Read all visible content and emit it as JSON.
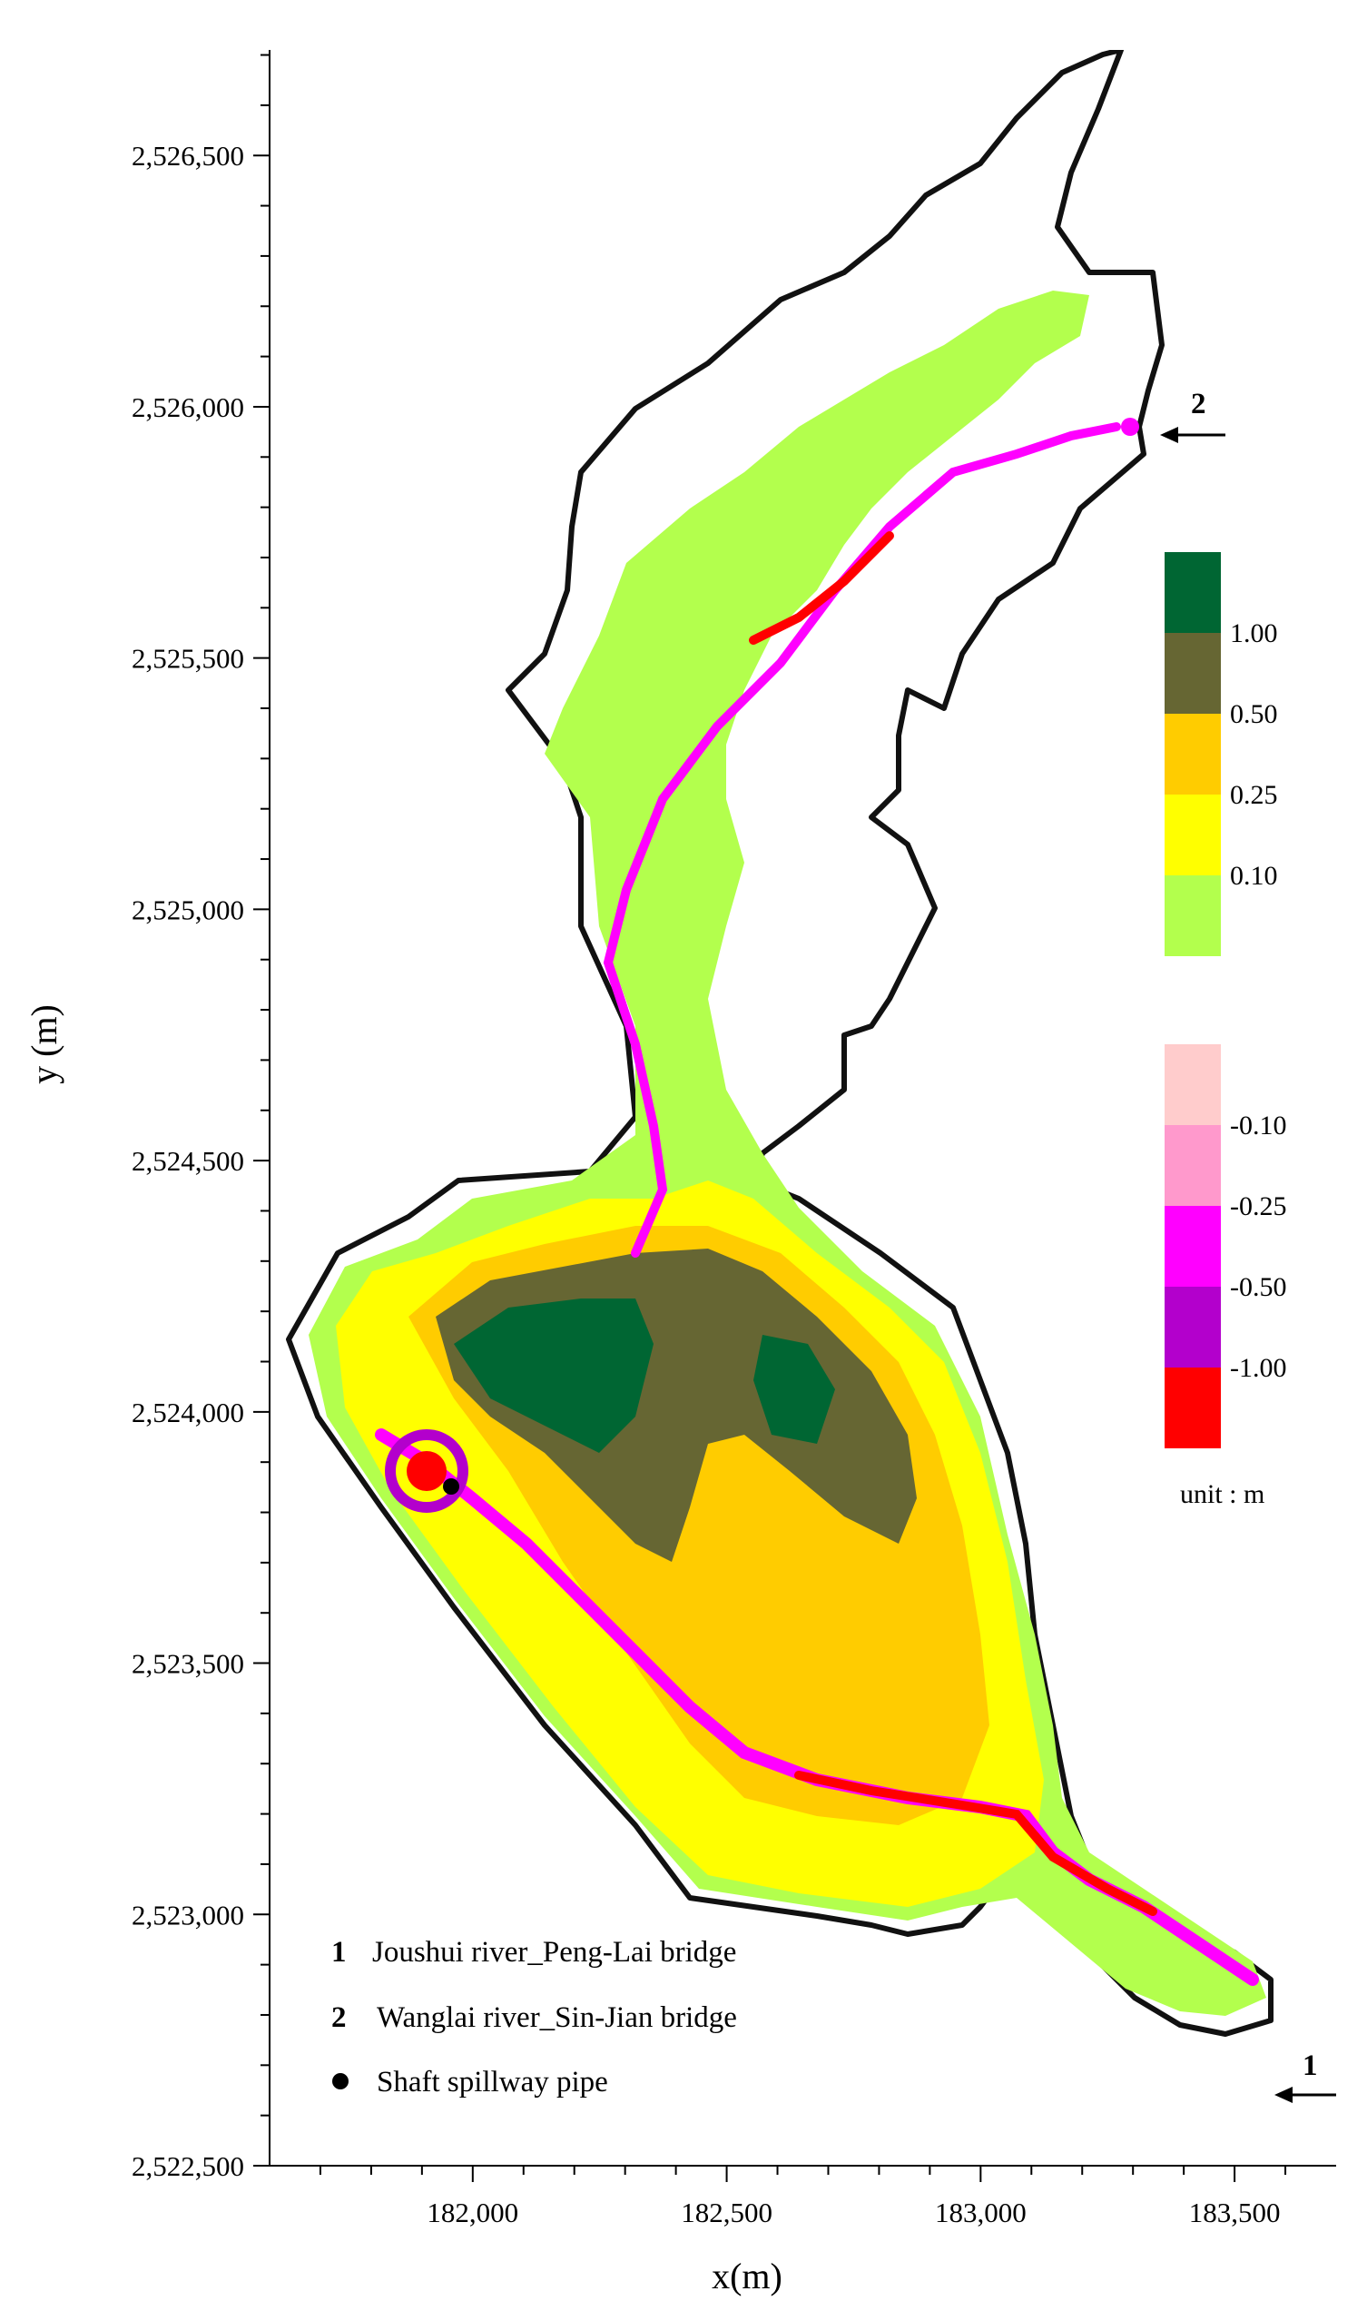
{
  "map": {
    "x_axis": {
      "label": "x(m)",
      "range": [
        181600,
        183700
      ],
      "ticks": [
        {
          "value": 182000,
          "label": "182,000"
        },
        {
          "value": 182500,
          "label": "182,500"
        },
        {
          "value": 183000,
          "label": "183,000"
        },
        {
          "value": 183500,
          "label": "183,500"
        }
      ]
    },
    "y_axis": {
      "label": "y (m)",
      "range": [
        2522500,
        2526710
      ],
      "ticks": [
        {
          "value": 2522500,
          "label": "2,522,500"
        },
        {
          "value": 2523000,
          "label": "2,523,000"
        },
        {
          "value": 2523500,
          "label": "2,523,500"
        },
        {
          "value": 2524000,
          "label": "2,524,000"
        },
        {
          "value": 2524500,
          "label": "2,524,500"
        },
        {
          "value": 2525000,
          "label": "2,525,000"
        },
        {
          "value": 2525500,
          "label": "2,525,500"
        },
        {
          "value": 2526000,
          "label": "2,526,000"
        },
        {
          "value": 2526500,
          "label": "2,526,500"
        }
      ]
    },
    "positive_legend": [
      {
        "color": "#006633",
        "label": ""
      },
      {
        "color": "#666633",
        "label": "1.00"
      },
      {
        "color": "#ffcc00",
        "label": "0.50"
      },
      {
        "color": "#ffff00",
        "label": "0.25"
      },
      {
        "color": "#b3ff4d",
        "label": "0.10"
      }
    ],
    "negative_legend": [
      {
        "color": "#ffcccc",
        "label": ""
      },
      {
        "color": "#ff99cc",
        "label": "-0.10"
      },
      {
        "color": "#ff00ff",
        "label": "-0.25"
      },
      {
        "color": "#b300cc",
        "label": "-0.50"
      },
      {
        "color": "#ff0000",
        "label": "-1.00"
      }
    ],
    "unit_label": "unit : m",
    "markers": [
      {
        "number": "1",
        "description": "Joushui river_Peng-Lai bridge"
      },
      {
        "number": "2",
        "description": "Wanglai river_Sin-Jian bridge"
      }
    ],
    "spillway": {
      "symbol": "dot",
      "description": "Shaft spillway pipe"
    }
  }
}
